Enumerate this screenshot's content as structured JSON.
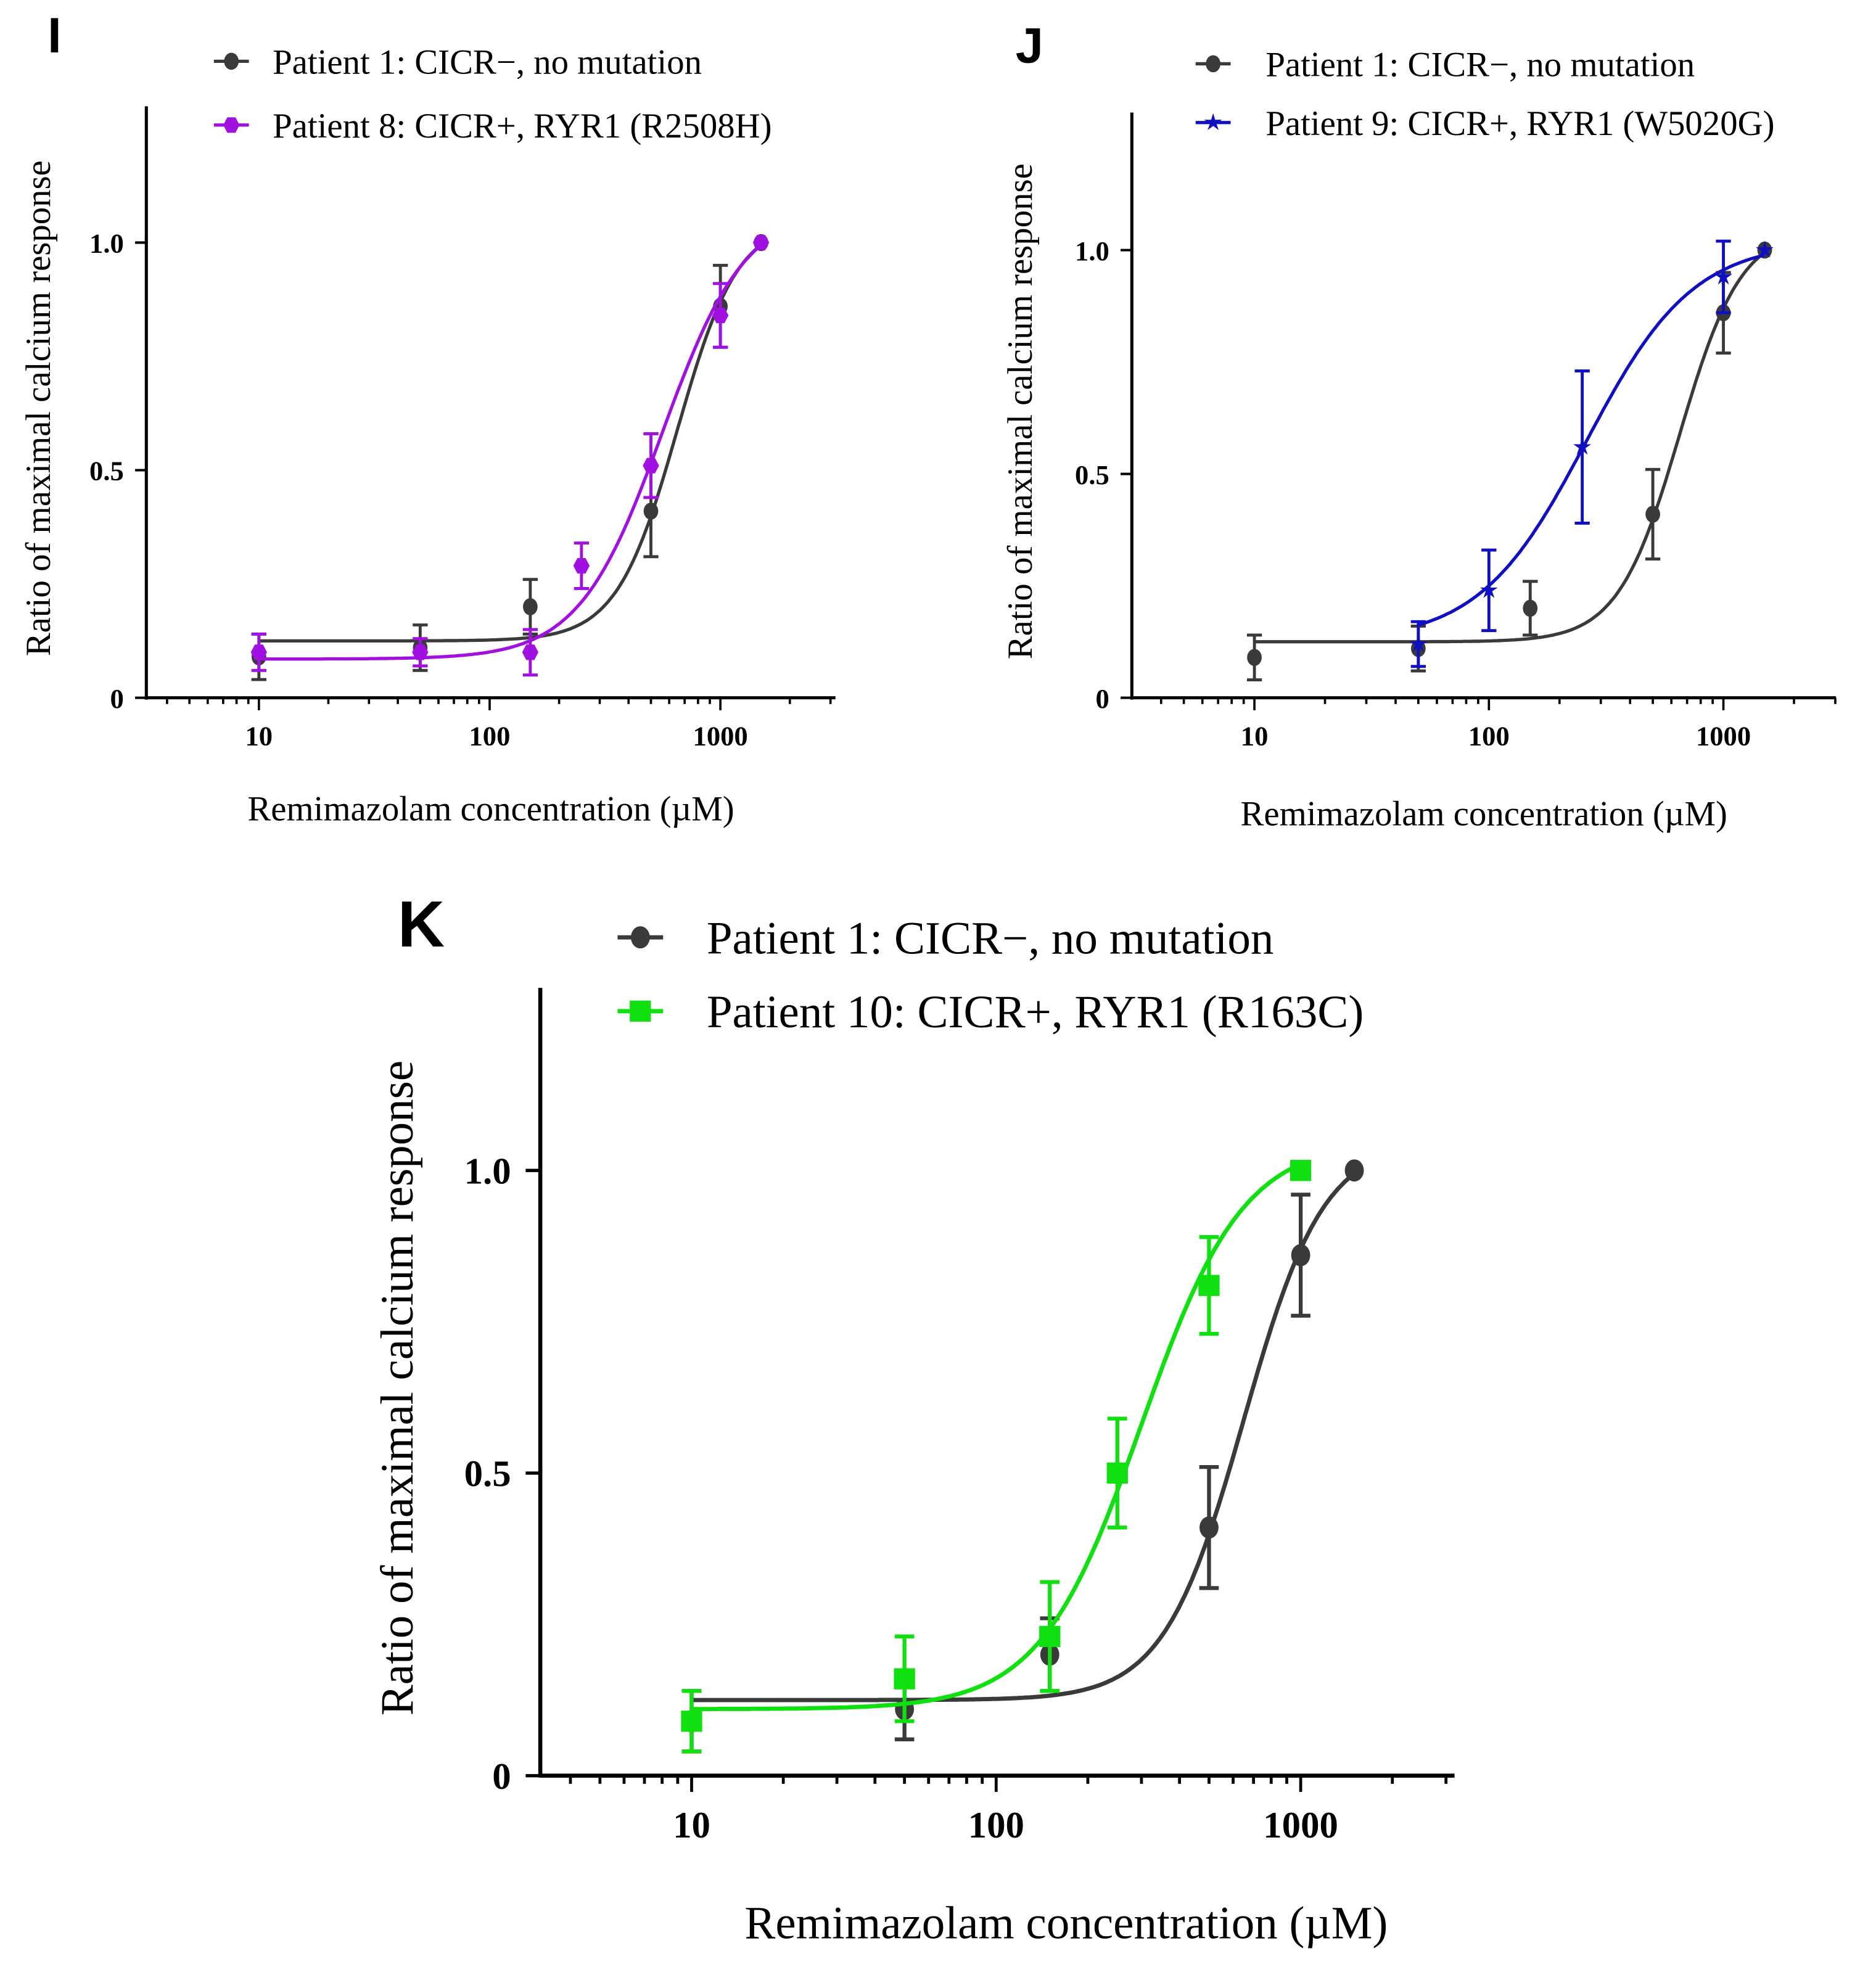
{
  "chart_data": [
    {
      "panel": "I",
      "type": "scatter",
      "xlabel": "Remimazolam concentration (µM)",
      "ylabel": "Ratio of maximal calcium response",
      "xscale": "log",
      "xlim": [
        3,
        3000
      ],
      "ylim": [
        0,
        1.3
      ],
      "xticks": [
        {
          "v": 10,
          "label": "10"
        },
        {
          "v": 100,
          "label": "100"
        },
        {
          "v": 1000,
          "label": "1000"
        }
      ],
      "yticks": [
        {
          "v": 0,
          "label": "0"
        },
        {
          "v": 0.5,
          "label": "0.5"
        },
        {
          "v": 1.0,
          "label": "1.0"
        }
      ],
      "legend_position": "top",
      "series": [
        {
          "name": "Patient 1: CICR−, no mutation",
          "color": "#3a3a3a",
          "marker": "circle",
          "x": [
            10,
            50,
            150,
            500,
            1000,
            1500
          ],
          "y": [
            0.09,
            0.11,
            0.2,
            0.41,
            0.86,
            1.0
          ],
          "err": [
            0.05,
            0.05,
            0.06,
            0.1,
            0.09,
            0
          ],
          "fit": {
            "bottom": 0.125,
            "top": 1.05,
            "ec50": 650,
            "hill": 3.3,
            "xmin": 10,
            "xmax": 1500
          }
        },
        {
          "name": "Patient 8: CICR+, RYR1 (R2508H)",
          "color": "#a010e0",
          "marker": "hexagon",
          "x": [
            10,
            50,
            150,
            250,
            500,
            1000,
            1500
          ],
          "y": [
            0.1,
            0.1,
            0.1,
            0.29,
            0.51,
            0.84,
            1.0
          ],
          "err": [
            0.04,
            0.03,
            0.05,
            0.05,
            0.07,
            0.07,
            0
          ],
          "fit": {
            "bottom": 0.085,
            "top": 1.08,
            "ec50": 560,
            "hill": 2.4,
            "xmin": 10,
            "xmax": 1500
          }
        }
      ]
    },
    {
      "panel": "J",
      "type": "scatter",
      "xlabel": "Remimazolam concentration (µM)",
      "ylabel": "Ratio of maximal calcium response",
      "xscale": "log",
      "xlim": [
        3,
        3000
      ],
      "ylim": [
        0,
        1.3
      ],
      "xticks": [
        {
          "v": 10,
          "label": "10"
        },
        {
          "v": 100,
          "label": "100"
        },
        {
          "v": 1000,
          "label": "1000"
        }
      ],
      "yticks": [
        {
          "v": 0,
          "label": "0"
        },
        {
          "v": 0.5,
          "label": "0.5"
        },
        {
          "v": 1.0,
          "label": "1.0"
        }
      ],
      "legend_position": "top",
      "series": [
        {
          "name": "Patient 1: CICR−, no mutation",
          "color": "#3a3a3a",
          "marker": "circle",
          "x": [
            10,
            50,
            150,
            500,
            1000,
            1500
          ],
          "y": [
            0.09,
            0.11,
            0.2,
            0.41,
            0.86,
            1.0
          ],
          "err": [
            0.05,
            0.05,
            0.06,
            0.1,
            0.09,
            0
          ],
          "fit": {
            "bottom": 0.125,
            "top": 1.05,
            "ec50": 650,
            "hill": 3.3,
            "xmin": 10,
            "xmax": 1500
          }
        },
        {
          "name": "Patient 9: CICR+, RYR1 (W5020G)",
          "color": "#1010c0",
          "marker": "star",
          "x": [
            50,
            100,
            250,
            1000,
            1500
          ],
          "y": [
            0.12,
            0.24,
            0.56,
            0.94,
            1.0
          ],
          "err": [
            0.05,
            0.09,
            0.17,
            0.08,
            0
          ],
          "fit": {
            "bottom": 0.125,
            "top": 1.02,
            "ec50": 260,
            "hill": 1.9,
            "xmin": 50,
            "xmax": 1500
          }
        }
      ]
    },
    {
      "panel": "K",
      "type": "scatter",
      "xlabel": "Remimazolam concentration (µM)",
      "ylabel": "Ratio of maximal calcium response",
      "xscale": "log",
      "xlim": [
        3,
        3000
      ],
      "ylim": [
        0,
        1.3
      ],
      "xticks": [
        {
          "v": 10,
          "label": "10"
        },
        {
          "v": 100,
          "label": "100"
        },
        {
          "v": 1000,
          "label": "1000"
        }
      ],
      "yticks": [
        {
          "v": 0,
          "label": "0"
        },
        {
          "v": 0.5,
          "label": "0.5"
        },
        {
          "v": 1.0,
          "label": "1.0"
        }
      ],
      "legend_position": "top",
      "series": [
        {
          "name": "Patient 1: CICR−, no mutation",
          "color": "#3a3a3a",
          "marker": "circle",
          "x": [
            10,
            50,
            150,
            500,
            1000,
            1500
          ],
          "y": [
            0.09,
            0.11,
            0.2,
            0.41,
            0.86,
            1.0
          ],
          "err": [
            0.05,
            0.05,
            0.06,
            0.1,
            0.1,
            0
          ],
          "fit": {
            "bottom": 0.125,
            "top": 1.05,
            "ec50": 650,
            "hill": 3.3,
            "xmin": 10,
            "xmax": 1500
          }
        },
        {
          "name": "Patient 10: CICR+, RYR1 (R163C)",
          "color": "#10e010",
          "marker": "square",
          "x": [
            10,
            50,
            150,
            250,
            500,
            1000
          ],
          "y": [
            0.09,
            0.16,
            0.23,
            0.5,
            0.81,
            1.0
          ],
          "err": [
            0.05,
            0.07,
            0.09,
            0.09,
            0.08,
            0
          ],
          "fit": {
            "bottom": 0.11,
            "top": 1.05,
            "ec50": 300,
            "hill": 2.6,
            "xmin": 10,
            "xmax": 1000
          }
        }
      ]
    }
  ]
}
